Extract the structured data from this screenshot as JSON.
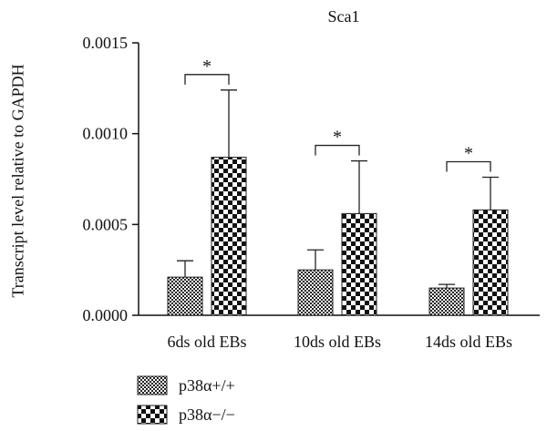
{
  "chart_data": {
    "type": "bar",
    "title": "Sca1",
    "xlabel": "",
    "ylabel": "Transcript level relative to GAPDH",
    "ylim": [
      0,
      0.0015
    ],
    "yticks": [
      "0.0000",
      "0.0005",
      "0.0010",
      "0.0015"
    ],
    "categories": [
      "6ds old EBs",
      "10ds old EBs",
      "14ds old EBs"
    ],
    "series": [
      {
        "name": "p38α+/+",
        "values": [
          0.00021,
          0.00025,
          0.00015
        ],
        "errors": [
          9e-05,
          0.00011,
          2e-05
        ],
        "pattern": "fine-checker"
      },
      {
        "name": "p38α−/−",
        "values": [
          0.00087,
          0.00056,
          0.00058
        ],
        "errors": [
          0.00037,
          0.00029,
          0.00018
        ],
        "pattern": "coarse-checker"
      }
    ],
    "annotations": [
      "*",
      "*",
      "*"
    ],
    "grid": false,
    "legend_position": "bottom-left"
  }
}
